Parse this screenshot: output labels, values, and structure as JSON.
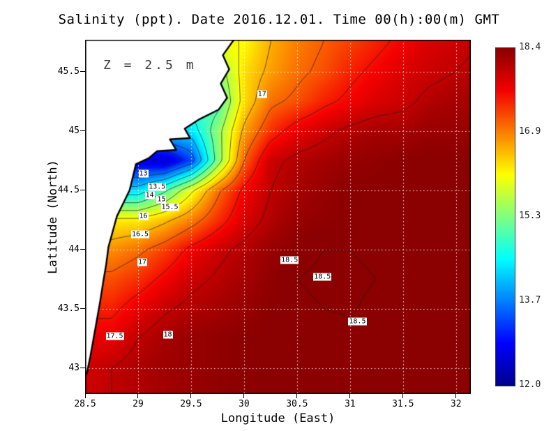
{
  "chart_data": {
    "type": "heatmap",
    "title": "Salinity (ppt). Date 2016.12.01. Time 00(h):00(m) GMT",
    "xlabel": "Longitude (East)",
    "ylabel": "Latitude (North)",
    "annotation": "Z = 2.5 m",
    "units": "ppt",
    "x_range": [
      28.5,
      32.14
    ],
    "y_range": [
      42.78,
      45.77
    ],
    "x_ticks": [
      28.5,
      29,
      29.5,
      30,
      30.5,
      31,
      31.5,
      32
    ],
    "x_tick_labels": [
      "28.5",
      "29",
      "29.5",
      "30",
      "30.5",
      "31",
      "31.5",
      "32"
    ],
    "y_ticks": [
      45.5,
      45,
      44.5,
      44,
      43.5,
      43
    ],
    "y_tick_labels": [
      "45.5",
      "45",
      "44.5",
      "44",
      "43.5",
      "43"
    ],
    "grid": true,
    "grid_color": "#ffffff",
    "grid_style": "dotted",
    "value_range": [
      12.0,
      18.4
    ],
    "colorbar_labels": [
      "18.4",
      "16.9",
      "15.3",
      "13.7",
      "12.0"
    ],
    "colormap": [
      {
        "t": 0.0,
        "c": "#00008f"
      },
      {
        "t": 0.125,
        "c": "#0000ff"
      },
      {
        "t": 0.375,
        "c": "#00ffff"
      },
      {
        "t": 0.625,
        "c": "#ffff00"
      },
      {
        "t": 0.875,
        "c": "#f50000"
      },
      {
        "t": 1.0,
        "c": "#8b0000"
      }
    ],
    "contour_levels": [
      12.5,
      13,
      13.5,
      14,
      14.5,
      15,
      15.5,
      16,
      16.5,
      17,
      17.5,
      18,
      18.5
    ],
    "contour_labels": [
      {
        "text": "17",
        "lon": 30.17,
        "lat": 45.31
      },
      {
        "text": "13",
        "lon": 29.05,
        "lat": 44.64
      },
      {
        "text": "13.5",
        "lon": 29.18,
        "lat": 44.53
      },
      {
        "text": "14",
        "lon": 29.11,
        "lat": 44.46
      },
      {
        "text": "15",
        "lon": 29.22,
        "lat": 44.42
      },
      {
        "text": "15.5",
        "lon": 29.3,
        "lat": 44.36
      },
      {
        "text": "16",
        "lon": 29.05,
        "lat": 44.28
      },
      {
        "text": "16.5",
        "lon": 29.02,
        "lat": 44.13
      },
      {
        "text": "17",
        "lon": 29.04,
        "lat": 43.89
      },
      {
        "text": "17.5",
        "lon": 28.78,
        "lat": 43.27
      },
      {
        "text": "18",
        "lon": 29.28,
        "lat": 43.28
      },
      {
        "text": "18.5",
        "lon": 30.43,
        "lat": 43.91
      },
      {
        "text": "18.5",
        "lon": 30.74,
        "lat": 43.77
      },
      {
        "text": "18.5",
        "lon": 31.07,
        "lat": 43.39
      }
    ],
    "grid_lon": [
      28.5,
      28.75,
      29.0,
      29.25,
      29.5,
      29.75,
      30.0,
      30.25,
      30.5,
      30.75,
      31.0,
      31.25,
      31.5,
      31.75,
      32.0,
      32.25
    ],
    "grid_lat": [
      45.75,
      45.5,
      45.25,
      45.0,
      44.75,
      44.5,
      44.25,
      44.0,
      43.75,
      43.5,
      43.25,
      43.0,
      42.75
    ],
    "salinity": [
      [
        null,
        null,
        null,
        null,
        null,
        null,
        16.0,
        16.5,
        16.8,
        17.0,
        17.2,
        17.4,
        17.6,
        17.8,
        17.9,
        18.0
      ],
      [
        null,
        null,
        null,
        null,
        null,
        15.2,
        16.2,
        16.6,
        16.9,
        17.1,
        17.4,
        17.6,
        17.8,
        17.9,
        18.0,
        18.1
      ],
      [
        null,
        null,
        null,
        null,
        null,
        14.8,
        16.2,
        16.9,
        17.1,
        17.4,
        17.6,
        17.8,
        17.9,
        18.1,
        18.2,
        18.2
      ],
      [
        null,
        null,
        null,
        null,
        14.2,
        15.3,
        16.6,
        17.3,
        17.7,
        17.9,
        18.1,
        18.2,
        18.2,
        18.3,
        18.3,
        18.3
      ],
      [
        null,
        null,
        12.6,
        12.4,
        13.2,
        15.2,
        17.0,
        17.9,
        18.1,
        18.2,
        18.3,
        18.35,
        18.4,
        18.4,
        18.4,
        18.4
      ],
      [
        null,
        null,
        14.2,
        14.9,
        15.9,
        16.9,
        17.6,
        18.0,
        18.2,
        18.3,
        18.4,
        18.4,
        18.4,
        18.4,
        18.4,
        18.4
      ],
      [
        null,
        null,
        16.1,
        16.4,
        16.8,
        17.3,
        17.8,
        18.1,
        18.3,
        18.35,
        18.4,
        18.4,
        18.4,
        18.4,
        18.4,
        18.4
      ],
      [
        null,
        16.7,
        16.9,
        17.2,
        17.6,
        17.9,
        18.1,
        18.3,
        18.4,
        18.5,
        18.5,
        18.45,
        18.4,
        18.4,
        18.4,
        18.4
      ],
      [
        null,
        17.1,
        17.3,
        17.6,
        17.9,
        18.05,
        18.2,
        18.35,
        18.5,
        18.55,
        18.55,
        18.5,
        18.4,
        18.4,
        18.4,
        18.4
      ],
      [
        null,
        17.4,
        17.7,
        17.95,
        18.1,
        18.2,
        18.3,
        18.4,
        18.45,
        18.5,
        18.52,
        18.45,
        18.4,
        18.4,
        18.4,
        18.4
      ],
      [
        null,
        17.7,
        18.0,
        18.2,
        18.3,
        18.35,
        18.4,
        18.4,
        18.4,
        18.42,
        18.45,
        18.4,
        18.4,
        18.4,
        18.4,
        18.4
      ],
      [
        17.85,
        18.0,
        18.15,
        18.25,
        18.3,
        18.35,
        18.4,
        18.4,
        18.4,
        18.4,
        18.4,
        18.4,
        18.4,
        18.4,
        18.4,
        18.4
      ],
      [
        17.9,
        18.0,
        18.1,
        18.2,
        18.3,
        18.35,
        18.4,
        18.4,
        18.4,
        18.4,
        18.4,
        18.4,
        18.4,
        18.4,
        18.4,
        18.4
      ]
    ],
    "coastline": [
      [
        29.92,
        45.79
      ],
      [
        29.8,
        45.64
      ],
      [
        29.86,
        45.52
      ],
      [
        29.78,
        45.4
      ],
      [
        29.84,
        45.28
      ],
      [
        29.76,
        45.18
      ],
      [
        29.58,
        45.1
      ],
      [
        29.44,
        45.02
      ],
      [
        29.49,
        44.94
      ],
      [
        29.3,
        44.93
      ],
      [
        29.36,
        44.84
      ],
      [
        29.18,
        44.83
      ],
      [
        29.1,
        44.77
      ],
      [
        28.98,
        44.72
      ],
      [
        28.95,
        44.61
      ],
      [
        28.92,
        44.5
      ],
      [
        28.86,
        44.39
      ],
      [
        28.8,
        44.28
      ],
      [
        28.76,
        44.15
      ],
      [
        28.72,
        44.02
      ],
      [
        28.7,
        43.88
      ],
      [
        28.67,
        43.72
      ],
      [
        28.64,
        43.55
      ],
      [
        28.61,
        43.4
      ],
      [
        28.58,
        43.25
      ],
      [
        28.55,
        43.1
      ],
      [
        28.52,
        42.97
      ],
      [
        28.49,
        42.9
      ]
    ],
    "coast_color": "#000000"
  }
}
